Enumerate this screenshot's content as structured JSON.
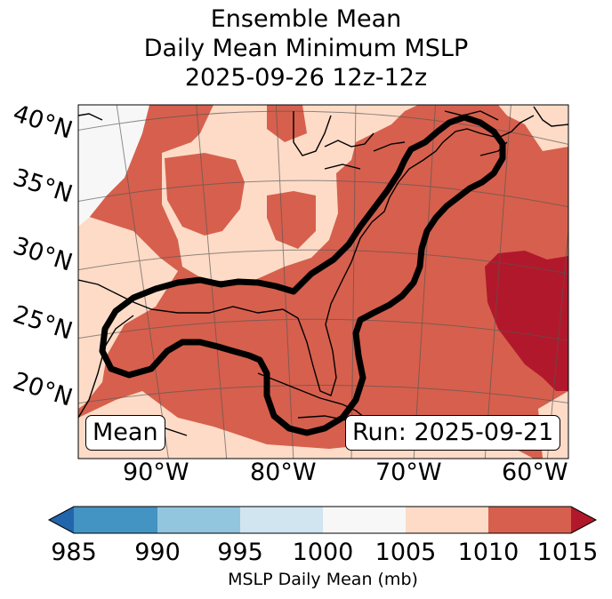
{
  "title": {
    "line1": "Ensemble Mean",
    "line2": "Daily Mean Minimum MSLP",
    "line3": "2025-09-26 12z-12z"
  },
  "map": {
    "lat_labels": [
      "40°N",
      "35°N",
      "30°N",
      "25°N",
      "20°N"
    ],
    "lon_labels": [
      "90°W",
      "80°W",
      "70°W",
      "60°W"
    ],
    "mean_label": "Mean",
    "run_label": "Run: 2025-09-21",
    "colors": {
      "c985": "#2166ac",
      "c990": "#4393c3",
      "c995": "#92c5de",
      "c1000": "#d1e5f0",
      "c1005": "#f7f7f7",
      "c1010": "#fddbc7",
      "c1015": "#d6604d",
      "c_over": "#b2182b"
    }
  },
  "colorbar": {
    "ticks": [
      "985",
      "990",
      "995",
      "1000",
      "1005",
      "1010",
      "1015"
    ],
    "label": "MSLP Daily Mean (mb)"
  }
}
